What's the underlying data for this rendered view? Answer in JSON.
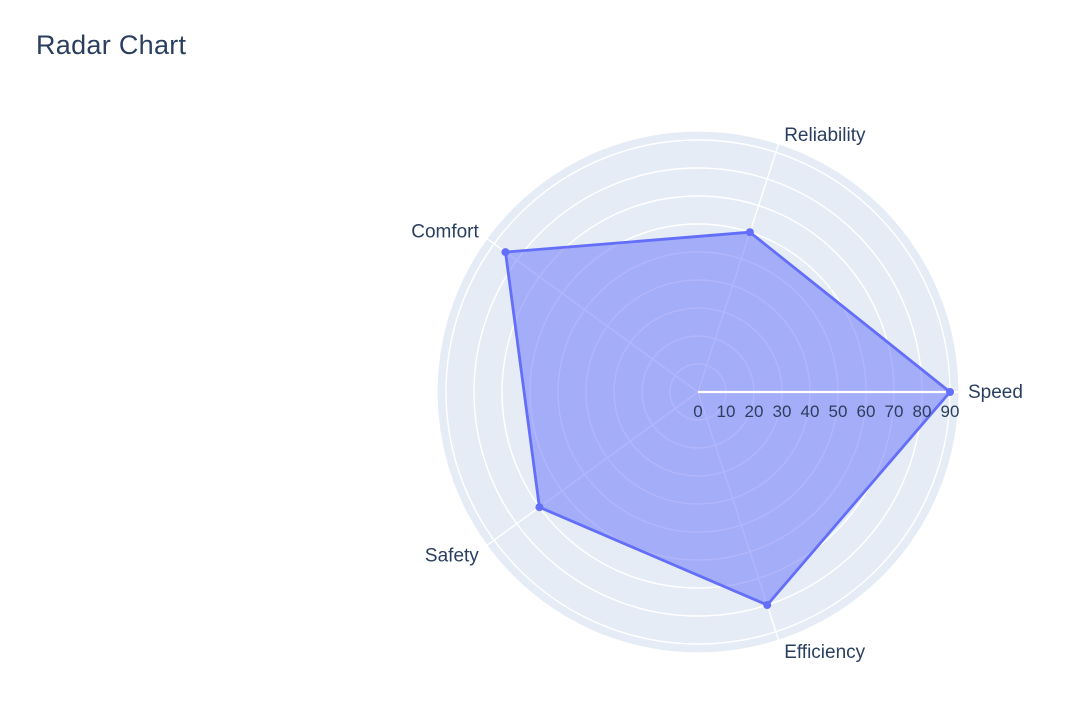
{
  "chart_data": {
    "type": "radar",
    "title": "Radar Chart",
    "categories": [
      "Speed",
      "Reliability",
      "Comfort",
      "Safety",
      "Efficiency"
    ],
    "series": [
      {
        "values": [
          90,
          60,
          85,
          70,
          80
        ]
      }
    ],
    "radial_axis": {
      "ticks": [
        0,
        10,
        20,
        30,
        40,
        50,
        60,
        70,
        80,
        90
      ],
      "range": [
        0,
        93
      ],
      "tick_labels_angle_deg": 0
    },
    "angular_axis": {
      "start_angle_deg": 0,
      "step_deg": 72,
      "direction": "counterclockwise"
    },
    "grid": {
      "visible": true,
      "shape": "circular"
    },
    "legend": {
      "visible": false
    },
    "colors": {
      "trace_line": "#636efa",
      "trace_fill": "rgba(99,110,250,0.5)",
      "marker": "#636efa",
      "polar_background": "#e5ecf6",
      "gridline": "#ffffff",
      "axis_line": "#ffffff",
      "tick_text": "#2a3f5f",
      "label_text": "#2a3f5f",
      "title_text": "#2a3f5f",
      "page_background": "#ffffff"
    }
  }
}
